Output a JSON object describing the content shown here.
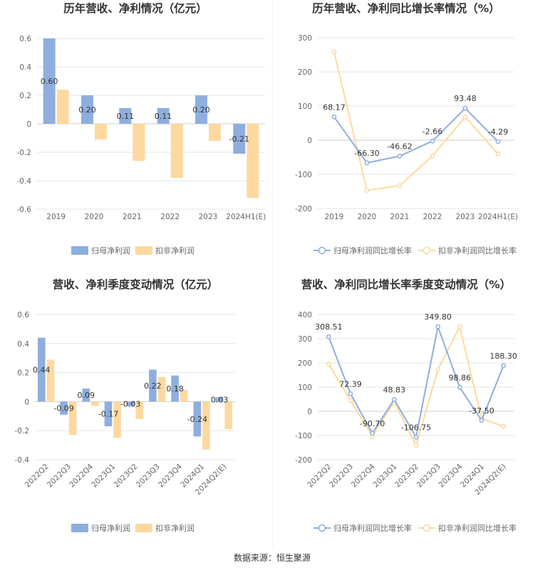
{
  "source_text": "数据来源：恒生聚源",
  "colors": {
    "blue": "#8eaede",
    "orange": "#fdd9a0",
    "grid": "#e6e6e6",
    "axis": "#cccccc"
  },
  "chart_data": [
    {
      "id": "annual-profit",
      "type": "bar",
      "title": "历年营收、净利情况（亿元）",
      "categories": [
        "2019",
        "2020",
        "2021",
        "2022",
        "2023",
        "2024H1(E)"
      ],
      "ylim": [
        -0.6,
        0.6
      ],
      "yticks": [
        -0.6,
        -0.4,
        -0.2,
        0,
        0.2,
        0.4,
        0.6
      ],
      "series": [
        {
          "name": "归母净利润",
          "values": [
            0.6,
            0.2,
            0.11,
            0.11,
            0.2,
            -0.21
          ],
          "labels": [
            "0.60",
            "0.20",
            "0.11",
            "0.11",
            "0.20",
            "-0.21"
          ]
        },
        {
          "name": "扣非净利润",
          "values": [
            0.24,
            -0.11,
            -0.26,
            -0.38,
            -0.12,
            -0.52
          ]
        }
      ],
      "legend": "bottom"
    },
    {
      "id": "annual-growth",
      "type": "line",
      "title": "历年营收、净利同比增长率情况（%）",
      "categories": [
        "2019",
        "2020",
        "2021",
        "2022",
        "2023",
        "2024H1(E)"
      ],
      "ylim": [
        -200,
        300
      ],
      "yticks": [
        -200,
        -100,
        0,
        100,
        200,
        300
      ],
      "series": [
        {
          "name": "归母净利润同比增长率",
          "values": [
            68.17,
            -66.3,
            -46.62,
            -2.66,
            93.48,
            -4.29
          ],
          "labels": [
            "68.17",
            "-66.30",
            "-46.62",
            "-2.66",
            "93.48",
            "-4.29"
          ]
        },
        {
          "name": "扣非净利润同比增长率",
          "values": [
            258,
            -147,
            -133,
            -46,
            68,
            -40
          ]
        }
      ],
      "legend": "bottom"
    },
    {
      "id": "quarterly-profit",
      "type": "bar",
      "title": "营收、净利季度变动情况（亿元）",
      "categories": [
        "2022Q2",
        "2022Q3",
        "2022Q4",
        "2023Q1",
        "2023Q2",
        "2023Q3",
        "2023Q4",
        "2024Q1",
        "2024Q2(E)"
      ],
      "ylim": [
        -0.4,
        0.6
      ],
      "yticks": [
        -0.4,
        -0.2,
        0,
        0.2,
        0.4,
        0.6
      ],
      "series": [
        {
          "name": "归母净利润",
          "values": [
            0.44,
            -0.09,
            0.09,
            -0.17,
            -0.03,
            0.22,
            0.18,
            -0.24,
            0.03
          ],
          "labels": [
            "0.44",
            "-0.09",
            "0.09",
            "-0.17",
            "-0.03",
            "0.22",
            "0.18",
            "-0.24",
            "0.03"
          ]
        },
        {
          "name": "扣非净利润",
          "values": [
            0.29,
            -0.23,
            -0.03,
            -0.25,
            -0.12,
            0.17,
            0.08,
            -0.33,
            -0.19
          ]
        }
      ],
      "legend": "bottom"
    },
    {
      "id": "quarterly-growth",
      "type": "line",
      "title": "营收、净利同比增长率季度变动情况（%）",
      "categories": [
        "2022Q2",
        "2022Q3",
        "2022Q4",
        "2023Q1",
        "2023Q2",
        "2023Q3",
        "2023Q4",
        "2024Q1",
        "2024Q2(E)"
      ],
      "ylim": [
        -200,
        400
      ],
      "yticks": [
        -200,
        -100,
        0,
        100,
        200,
        300,
        400
      ],
      "series": [
        {
          "name": "归母净利润同比增长率",
          "values": [
            308.51,
            72.39,
            -90.7,
            48.83,
            -106.75,
            349.8,
            98.86,
            -37.5,
            188.3
          ],
          "labels": [
            "308.51",
            "72.39",
            "-90.70",
            "48.83",
            "-106.75",
            "349.80",
            "98.86",
            "-37.50",
            "188.30"
          ]
        },
        {
          "name": "扣非净利润同比增长率",
          "values": [
            195,
            45,
            -103,
            38,
            -140,
            172,
            350,
            -30,
            -62
          ]
        }
      ],
      "legend": "bottom"
    }
  ]
}
